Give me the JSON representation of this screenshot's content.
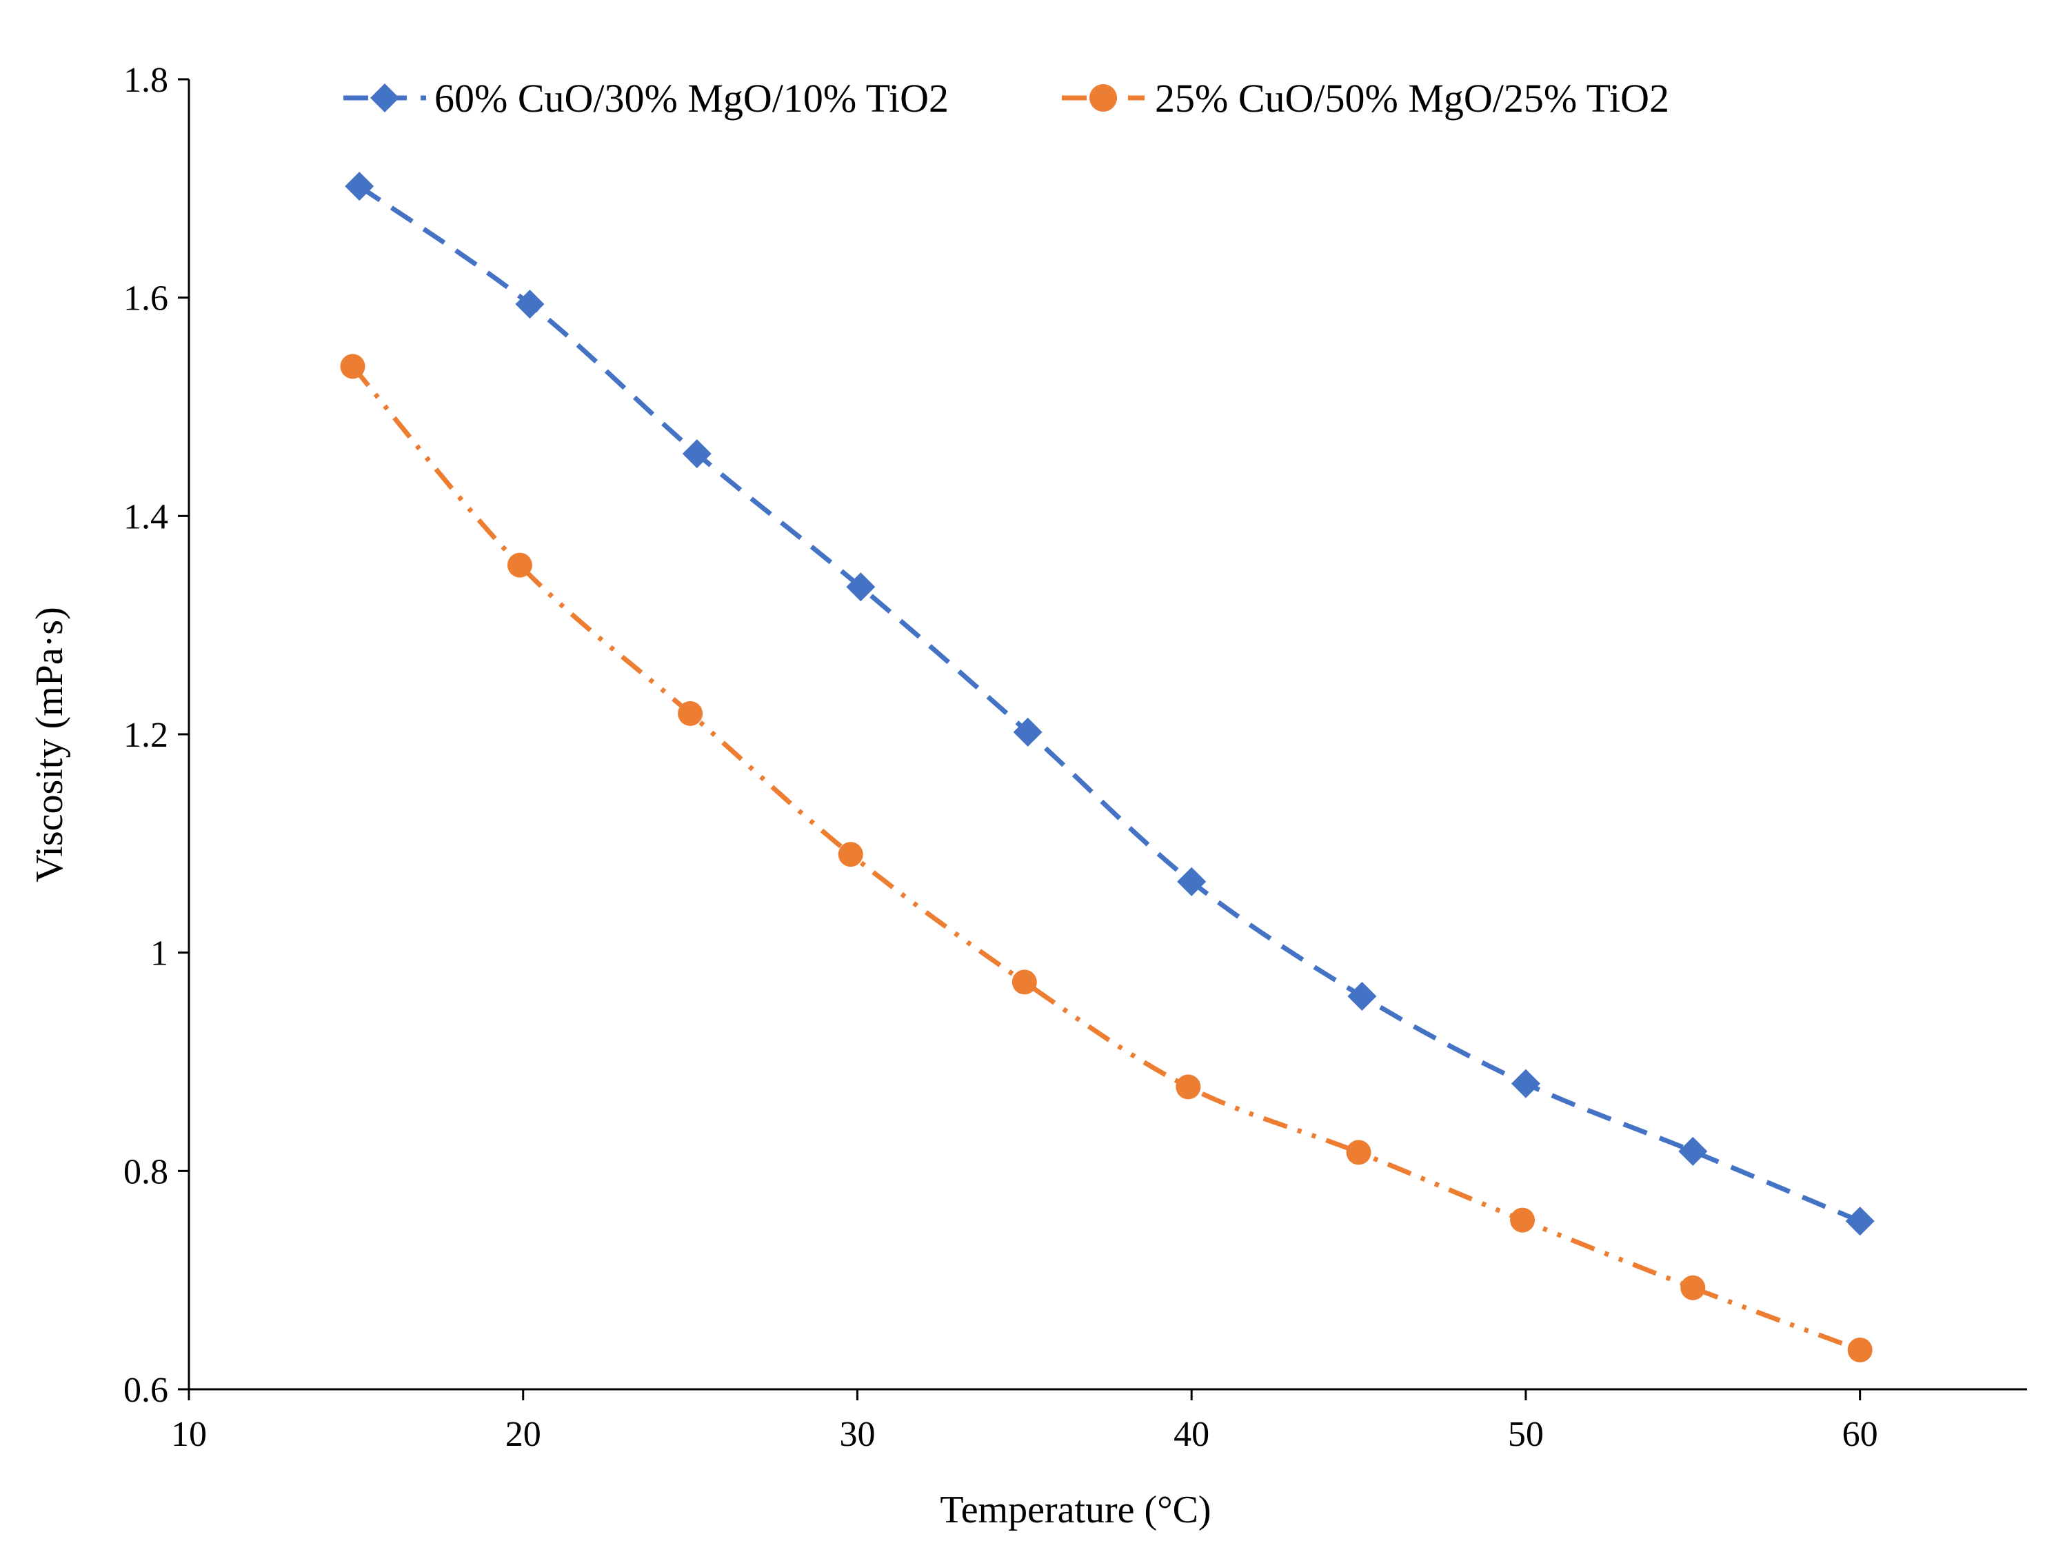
{
  "chart_data": {
    "type": "line",
    "title": "",
    "xlabel": "Temperature (°C)",
    "ylabel": "Viscosity (mPa·s)",
    "xlim": [
      10,
      65
    ],
    "ylim": [
      0.6,
      1.8
    ],
    "xticks": [
      10,
      20,
      30,
      40,
      50,
      60
    ],
    "xtick_labels": [
      "10",
      "20",
      "30",
      "40",
      "50",
      "60"
    ],
    "yticks": [
      0.6,
      0.8,
      1.0,
      1.2,
      1.4,
      1.6,
      1.8
    ],
    "ytick_labels": [
      "0.6",
      "0.8",
      "1",
      "1.2",
      "1.4",
      "1.6",
      "1.8"
    ],
    "grid": false,
    "legend_position": "top",
    "series": [
      {
        "name": "60% CuO/30% MgO/10% TiO2",
        "color": "#4472C4",
        "marker": "diamond",
        "line_style": "dashed",
        "x": [
          15.1,
          20.2,
          25.2,
          30.1,
          35.1,
          40.0,
          45.1,
          50.0,
          55.0,
          60.0
        ],
        "y": [
          1.702,
          1.594,
          1.457,
          1.335,
          1.202,
          1.065,
          0.96,
          0.88,
          0.818,
          0.754
        ]
      },
      {
        "name": "25% CuO/50% MgO/25% TiO2",
        "color": "#ED7D31",
        "marker": "circle",
        "line_style": "dash-dot-dot",
        "x": [
          14.9,
          19.9,
          25.0,
          29.8,
          35.0,
          39.9,
          45.0,
          49.9,
          55.0,
          60.0
        ],
        "y": [
          1.537,
          1.355,
          1.219,
          1.09,
          0.973,
          0.877,
          0.817,
          0.755,
          0.693,
          0.636
        ]
      }
    ]
  }
}
